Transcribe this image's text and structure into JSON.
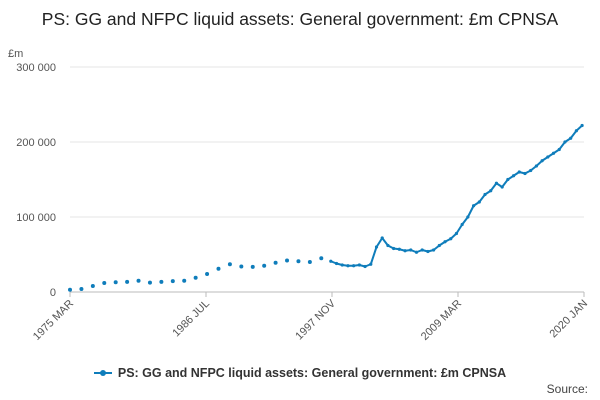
{
  "chart_data": {
    "type": "line",
    "title": "PS: GG and NFPC liquid assets: General government: £m CPNSA",
    "ylabel": "£m",
    "xlabel": "",
    "ylim": [
      0,
      300000
    ],
    "yticks": [
      0,
      100000,
      200000,
      300000
    ],
    "ytick_labels": [
      "0",
      "100 000",
      "200 000",
      "300 000"
    ],
    "xticks": [
      "1975 MAR",
      "1986 JUL",
      "1997 NOV",
      "2009 MAR",
      "2020 JAN"
    ],
    "xlim": [
      "1975-03",
      "2020-03"
    ],
    "grid": true,
    "legend_position": "bottom",
    "color": "#0f7dbb",
    "series": [
      {
        "name": "PS: GG and NFPC liquid assets: General government: £m CPNSA",
        "x": [
          "1975-03",
          "1976-03",
          "1977-03",
          "1978-03",
          "1979-03",
          "1980-03",
          "1981-03",
          "1982-03",
          "1983-03",
          "1984-03",
          "1985-03",
          "1986-03",
          "1987-03",
          "1988-03",
          "1989-03",
          "1990-03",
          "1991-03",
          "1992-03",
          "1993-03",
          "1994-03",
          "1995-03",
          "1996-03",
          "1997-03",
          "1998-01",
          "1998-07",
          "1999-01",
          "1999-07",
          "2000-01",
          "2000-07",
          "2001-01",
          "2001-07",
          "2002-01",
          "2002-07",
          "2003-01",
          "2003-07",
          "2004-01",
          "2004-07",
          "2005-01",
          "2005-07",
          "2006-01",
          "2006-07",
          "2007-01",
          "2007-07",
          "2008-01",
          "2008-07",
          "2009-01",
          "2009-07",
          "2010-01",
          "2010-07",
          "2011-01",
          "2011-07",
          "2012-01",
          "2012-07",
          "2013-01",
          "2013-07",
          "2014-01",
          "2014-07",
          "2015-01",
          "2015-07",
          "2016-01",
          "2016-07",
          "2017-01",
          "2017-07",
          "2018-01",
          "2018-07",
          "2019-01",
          "2019-07",
          "2020-01"
        ],
        "y": [
          3000,
          4000,
          8000,
          12000,
          13000,
          13500,
          15000,
          12500,
          13500,
          14500,
          15000,
          19000,
          24000,
          31000,
          37000,
          34000,
          33500,
          35000,
          39000,
          42000,
          41000,
          40000,
          45000,
          41000,
          38000,
          36000,
          35000,
          35000,
          36000,
          34000,
          37000,
          60000,
          72000,
          62000,
          58000,
          57000,
          55000,
          56000,
          53000,
          56000,
          54000,
          56000,
          62000,
          67000,
          71000,
          78000,
          90000,
          100000,
          115000,
          120000,
          130000,
          135000,
          145000,
          140000,
          150000,
          155000,
          160000,
          158000,
          162000,
          168000,
          175000,
          180000,
          185000,
          190000,
          200000,
          205000,
          215000,
          222000
        ]
      }
    ]
  },
  "legend": {
    "label": "PS: GG and NFPC liquid assets: General government: £m CPNSA"
  },
  "source": {
    "label": "Source:"
  }
}
